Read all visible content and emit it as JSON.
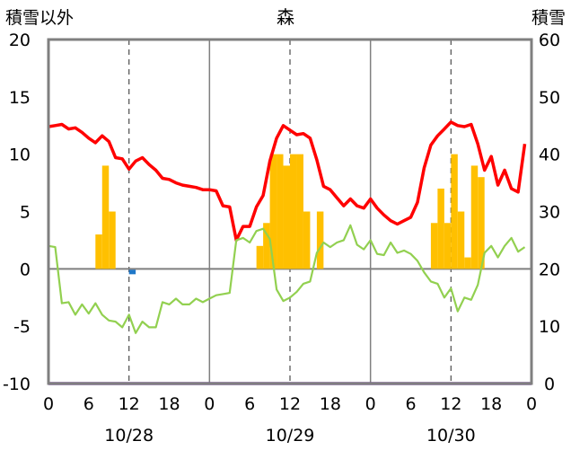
{
  "chart_data": {
    "type": "bar+line",
    "title": "森",
    "left_axis_label": "積雪以外",
    "right_axis_label": "積雪",
    "y_left": {
      "min": -10,
      "max": 20,
      "ticks": [
        20,
        15,
        10,
        5,
        0,
        -5,
        -10
      ]
    },
    "y_right": {
      "min": 0,
      "max": 60,
      "ticks": [
        60,
        50,
        40,
        30,
        20,
        10,
        0
      ]
    },
    "x_hours": {
      "min": 0,
      "max": 72
    },
    "x_tick_labels": [
      "0",
      "6",
      "12",
      "18",
      "0",
      "6",
      "12",
      "18",
      "0",
      "6",
      "12",
      "18",
      "0"
    ],
    "date_labels": [
      {
        "hour": 12,
        "text": "10/28"
      },
      {
        "hour": 36,
        "text": "10/29"
      },
      {
        "hour": 60,
        "text": "10/30"
      }
    ],
    "day_separators": [
      24,
      48
    ],
    "dashed_gridlines": [
      12,
      36,
      60
    ],
    "zero_line": 0,
    "series": [
      {
        "kind": "bars",
        "color": "#ffc000",
        "axis": "left",
        "points": [
          [
            7,
            3
          ],
          [
            8,
            9
          ],
          [
            9,
            5
          ],
          [
            31,
            2
          ],
          [
            32,
            4
          ],
          [
            33,
            10
          ],
          [
            34,
            10
          ],
          [
            35,
            9
          ],
          [
            36,
            10
          ],
          [
            37,
            10
          ],
          [
            38,
            5
          ],
          [
            40,
            5
          ],
          [
            57,
            4
          ],
          [
            58,
            7
          ],
          [
            59,
            4
          ],
          [
            60,
            10
          ],
          [
            61,
            5
          ],
          [
            62,
            1
          ],
          [
            63,
            9
          ],
          [
            64,
            8
          ]
        ]
      },
      {
        "kind": "bars",
        "color": "#1f77c8",
        "axis": "left",
        "points": [
          [
            12,
            -0.3
          ]
        ]
      },
      {
        "kind": "line",
        "color": "#ff0000",
        "axis": "left",
        "x": [
          0,
          1,
          2,
          3,
          4,
          5,
          6,
          7,
          8,
          9,
          10,
          11,
          12,
          13,
          14,
          15,
          16,
          17,
          18,
          19,
          20,
          21,
          22,
          23,
          24,
          25,
          26,
          27,
          28,
          29,
          30,
          31,
          32,
          33,
          34,
          35,
          36,
          37,
          38,
          39,
          40,
          41,
          42,
          43,
          44,
          45,
          46,
          47,
          48,
          49,
          50,
          51,
          52,
          53,
          54,
          55,
          56,
          57,
          58,
          59,
          60,
          61,
          62,
          63,
          64,
          65,
          66,
          67,
          68,
          69,
          70,
          71
        ],
        "values": [
          12.4,
          12.5,
          12.6,
          12.2,
          12.3,
          11.9,
          11.4,
          11.0,
          11.6,
          11.1,
          9.7,
          9.6,
          8.7,
          9.4,
          9.7,
          9.1,
          8.6,
          7.9,
          7.8,
          7.5,
          7.3,
          7.2,
          7.1,
          6.9,
          6.9,
          6.8,
          5.5,
          5.4,
          2.5,
          3.7,
          3.7,
          5.4,
          6.4,
          9.4,
          11.4,
          12.5,
          12.1,
          11.7,
          11.8,
          11.4,
          9.5,
          7.2,
          6.9,
          6.2,
          5.5,
          6.1,
          5.5,
          5.3,
          6.1,
          5.3,
          4.7,
          4.2,
          3.9,
          4.2,
          4.5,
          5.8,
          8.8,
          10.8,
          11.6,
          12.2,
          12.8,
          12.5,
          12.4,
          12.6,
          10.9,
          8.6,
          9.8,
          7.3,
          8.6,
          7.0,
          6.7,
          10.9
        ]
      },
      {
        "kind": "line",
        "color": "#92d050",
        "axis": "left",
        "x": [
          0,
          1,
          2,
          3,
          4,
          5,
          6,
          7,
          8,
          9,
          10,
          11,
          12,
          13,
          14,
          15,
          16,
          17,
          18,
          19,
          20,
          21,
          22,
          23,
          24,
          25,
          26,
          27,
          28,
          29,
          30,
          31,
          32,
          33,
          34,
          35,
          36,
          37,
          38,
          39,
          40,
          41,
          42,
          43,
          44,
          45,
          46,
          47,
          48,
          49,
          50,
          51,
          52,
          53,
          54,
          55,
          56,
          57,
          58,
          59,
          60,
          61,
          62,
          63,
          64,
          65,
          66,
          67,
          68,
          69,
          70,
          71
        ],
        "values": [
          2.0,
          1.9,
          -3.0,
          -2.9,
          -4.0,
          -3.1,
          -3.9,
          -3.0,
          -4.0,
          -4.5,
          -4.6,
          -5.1,
          -4.0,
          -5.6,
          -4.6,
          -5.1,
          -5.1,
          -2.9,
          -3.1,
          -2.6,
          -3.1,
          -3.1,
          -2.6,
          -2.9,
          -2.6,
          -2.3,
          -2.2,
          -2.1,
          2.5,
          2.7,
          2.3,
          3.3,
          3.5,
          2.6,
          -1.8,
          -2.8,
          -2.5,
          -2.0,
          -1.3,
          -1.1,
          1.4,
          2.3,
          1.9,
          2.3,
          2.5,
          3.8,
          2.1,
          1.7,
          2.5,
          1.3,
          1.2,
          2.3,
          1.4,
          1.6,
          1.3,
          0.7,
          -0.3,
          -1.1,
          -1.3,
          -2.5,
          -1.7,
          -3.7,
          -2.5,
          -2.7,
          -1.4,
          1.4,
          2.0,
          1.0,
          2.0,
          2.7,
          1.5,
          1.9
        ]
      },
      {
        "kind": "line",
        "color": "#7030a0",
        "axis": "right",
        "x": [
          0,
          72
        ],
        "values": [
          0,
          0
        ]
      }
    ]
  }
}
